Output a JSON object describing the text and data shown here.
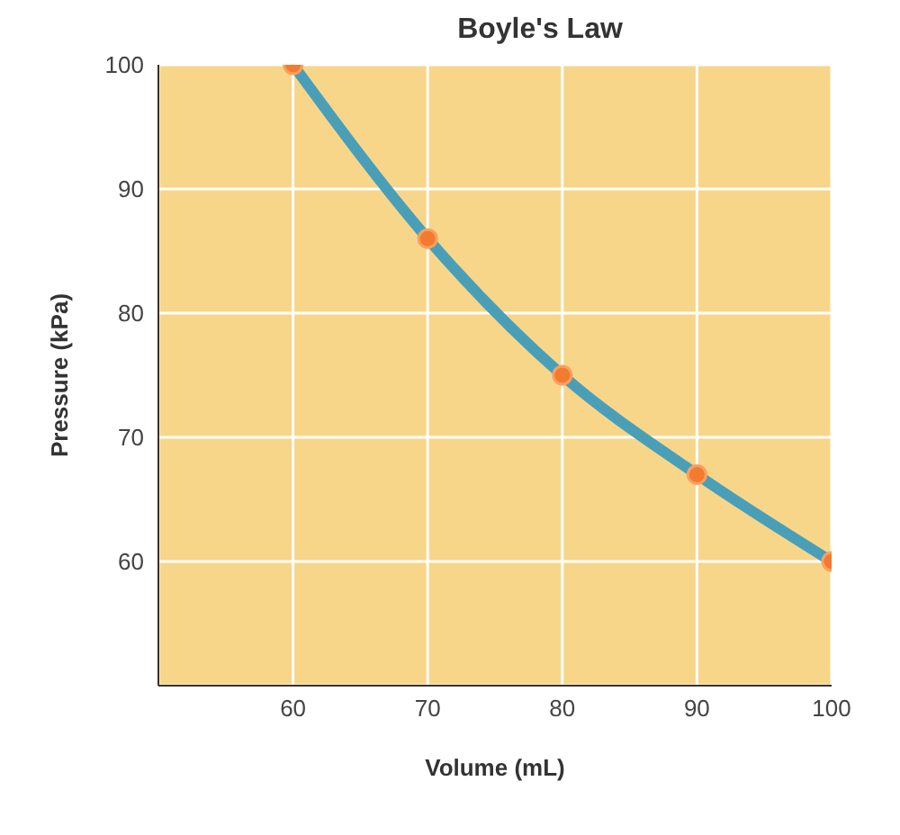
{
  "chart_data": {
    "type": "line",
    "title": "Boyle's Law",
    "xlabel": "Volume (mL)",
    "ylabel": "Pressure (kPa)",
    "x": [
      60,
      70,
      80,
      90,
      100
    ],
    "series": [
      {
        "color": "#4a9fb8",
        "values": [
          100,
          86,
          75,
          67,
          60
        ]
      }
    ],
    "xlim": [
      50,
      100
    ],
    "ylim": [
      50,
      100
    ],
    "xticks": [
      60,
      70,
      80,
      90,
      100
    ],
    "yticks": [
      60,
      70,
      80,
      90,
      100
    ],
    "grid": true,
    "marker": "circle",
    "line_style": "solid",
    "legend": false
  }
}
